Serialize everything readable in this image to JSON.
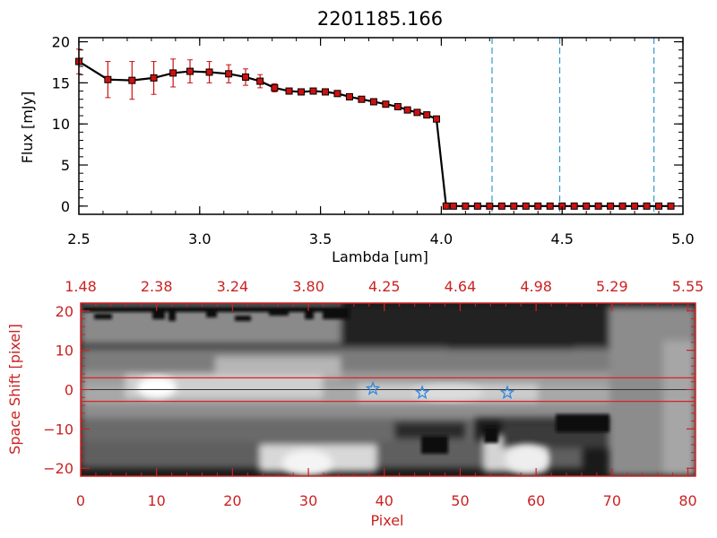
{
  "chart_data": [
    {
      "type": "line",
      "title": "2201185.166",
      "xlabel": "Lambda [um]",
      "ylabel": "Flux [mJy]",
      "xlim": [
        2.5,
        5.0
      ],
      "ylim": [
        -1,
        20.5
      ],
      "x_ticks": [
        2.5,
        3.0,
        3.5,
        4.0,
        4.5,
        5.0
      ],
      "x_tick_labels": [
        "2.5",
        "3.0",
        "3.5",
        "4.0",
        "4.5",
        "5.0"
      ],
      "y_ticks": [
        0,
        5,
        10,
        15,
        20
      ],
      "y_tick_labels": [
        "0",
        "5",
        "10",
        "15",
        "20"
      ],
      "series": [
        {
          "name": "flux",
          "color": "#000000",
          "marker_color": "#cc1111",
          "x": [
            2.5,
            2.62,
            2.72,
            2.81,
            2.89,
            2.96,
            3.04,
            3.12,
            3.19,
            3.25,
            3.31,
            3.37,
            3.42,
            3.47,
            3.52,
            3.57,
            3.62,
            3.67,
            3.72,
            3.77,
            3.82,
            3.86,
            3.9,
            3.94,
            3.98,
            4.02,
            4.05,
            4.1,
            4.15,
            4.2,
            4.25,
            4.3,
            4.35,
            4.4,
            4.45,
            4.5,
            4.55,
            4.6,
            4.65,
            4.7,
            4.75,
            4.8,
            4.85,
            4.9,
            4.95
          ],
          "y": [
            17.6,
            15.4,
            15.3,
            15.6,
            16.2,
            16.4,
            16.3,
            16.1,
            15.7,
            15.2,
            14.4,
            14.0,
            13.9,
            14.0,
            13.9,
            13.7,
            13.3,
            13.0,
            12.7,
            12.4,
            12.1,
            11.7,
            11.4,
            11.1,
            10.6,
            0,
            0,
            0,
            0,
            0,
            0,
            0,
            0,
            0,
            0,
            0,
            0,
            0,
            0,
            0,
            0,
            0,
            0,
            0,
            0
          ],
          "yerr": [
            1.5,
            2.2,
            2.3,
            2.0,
            1.7,
            1.4,
            1.3,
            1.1,
            1.0,
            0.8,
            0.5,
            0.3,
            0.2,
            0.2,
            0.2,
            0.2,
            0.2,
            0.2,
            0.2,
            0.2,
            0.2,
            0.2,
            0.2,
            0.2,
            0.2,
            0,
            0,
            0,
            0,
            0,
            0,
            0,
            0,
            0,
            0,
            0,
            0,
            0,
            0,
            0,
            0,
            0,
            0,
            0,
            0
          ]
        }
      ],
      "reference_lines_x": [
        4.21,
        4.49,
        4.88
      ],
      "reference_line_color": "#3399cc"
    },
    {
      "type": "heatmap",
      "xlabel": "Pixel",
      "ylabel": "Space Shift [pixel]",
      "xlim": [
        0,
        81
      ],
      "ylim": [
        -22,
        22
      ],
      "x_ticks": [
        0,
        10,
        20,
        30,
        40,
        50,
        60,
        70,
        80
      ],
      "x_tick_labels": [
        "0",
        "10",
        "20",
        "30",
        "40",
        "50",
        "60",
        "70",
        "80"
      ],
      "y_ticks": [
        -20,
        -10,
        0,
        10,
        20
      ],
      "y_tick_labels": [
        "−20",
        "−10",
        "0",
        "10",
        "20"
      ],
      "top_axis_ticks": [
        0,
        10,
        20,
        30,
        40,
        50,
        60,
        70,
        80
      ],
      "top_axis_labels": [
        "1.48",
        "2.38",
        "3.24",
        "3.80",
        "4.25",
        "4.64",
        "4.98",
        "5.29",
        "5.55"
      ],
      "axis_color": "#cc2222",
      "extraction_lines": [
        3,
        -3
      ],
      "center_line": 0,
      "stars": [
        {
          "x": 38.5,
          "y": 0.2
        },
        {
          "x": 45.0,
          "y": -0.8
        },
        {
          "x": 56.2,
          "y": -0.8
        }
      ],
      "star_color": "#3388dd"
    }
  ]
}
